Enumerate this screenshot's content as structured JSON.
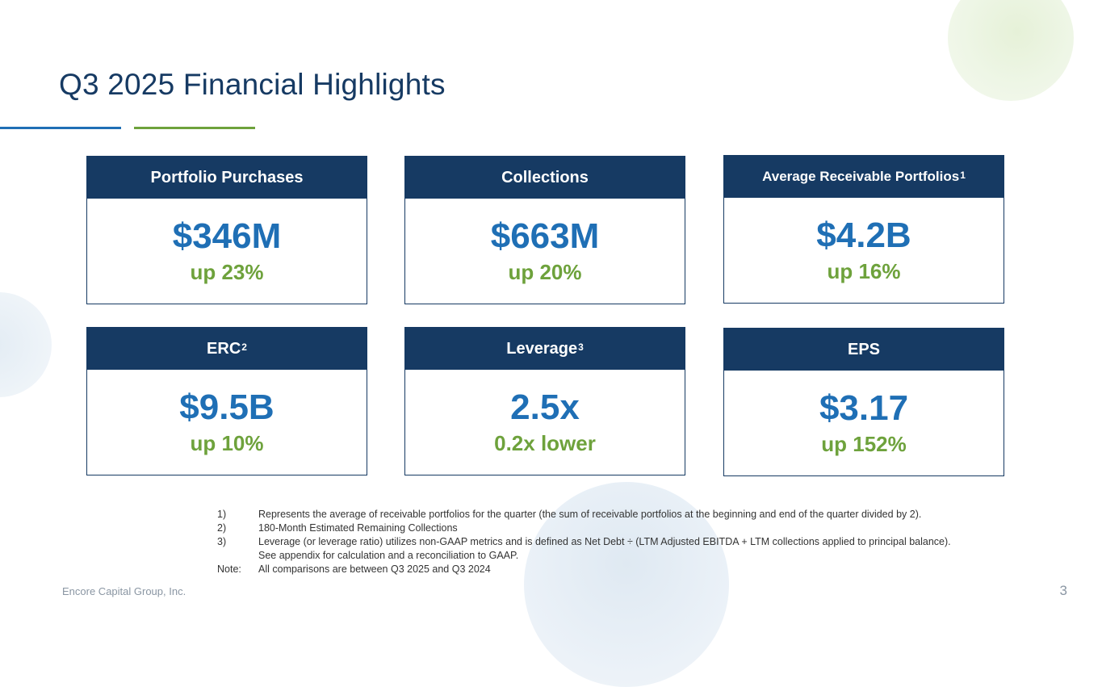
{
  "slide": {
    "title": "Q3 2025 Financial Highlights",
    "page_number": "3",
    "company": "Encore Capital Group, Inc."
  },
  "cards": [
    {
      "label": "Portfolio Purchases",
      "footnote": "",
      "value": "$346M",
      "change": "up 23%"
    },
    {
      "label": "Collections",
      "footnote": "",
      "value": "$663M",
      "change": "up 20%"
    },
    {
      "label": "Average Receivable Portfolios",
      "footnote": "1",
      "value": "$4.2B",
      "change": "up 16%"
    },
    {
      "label": "ERC",
      "footnote": "2",
      "value": "$9.5B",
      "change": "up 10%"
    },
    {
      "label": "Leverage",
      "footnote": "3",
      "value": "2.5x",
      "change": "0.2x lower"
    },
    {
      "label": "EPS",
      "footnote": "",
      "value": "$3.17",
      "change": "up 152%"
    }
  ],
  "footnotes": [
    {
      "marker": "1)",
      "text": "Represents the average of receivable portfolios for the quarter (the sum of receivable portfolios at the beginning and end of the quarter divided by 2)."
    },
    {
      "marker": "2)",
      "text": "180-Month Estimated Remaining Collections"
    },
    {
      "marker": "3)",
      "text": "Leverage (or leverage ratio) utilizes non-GAAP metrics and is defined as Net Debt ÷ (LTM Adjusted EBITDA + LTM collections applied to principal balance)."
    },
    {
      "marker": "",
      "text": "See appendix for calculation and a reconciliation to GAAP."
    },
    {
      "marker": "Note:",
      "text": "All comparisons are between Q3 2025 and Q3 2024"
    }
  ],
  "colors": {
    "navy": "#163a63",
    "blue": "#1f6fb5",
    "green": "#6ea23c"
  }
}
